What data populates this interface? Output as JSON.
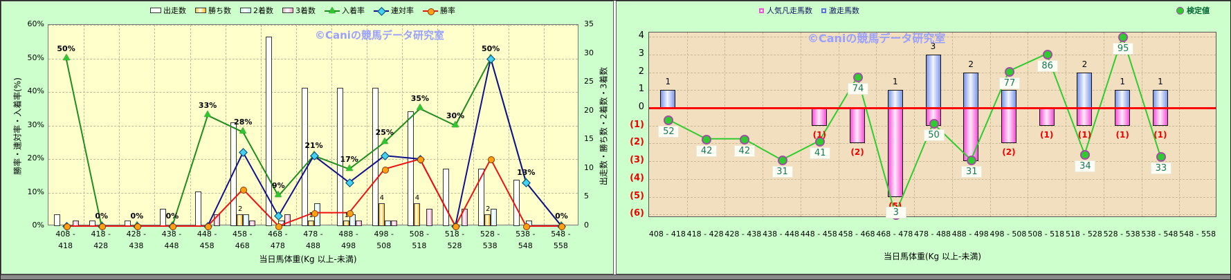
{
  "watermark": "©Caniの競馬データ研究室",
  "chart_data": [
    {
      "type": "bar+line combo",
      "title": "",
      "xlabel": "当日馬体重(Kg 以上-未満)",
      "ylabel_left": "勝率・連対率・入着率(%)",
      "ylabel_right": "出走数・勝ち数・2着数・3着数",
      "ylim_left_pct": [
        0,
        60
      ],
      "ylim_right_count": [
        0,
        35
      ],
      "y_ticks_left": [
        "0%",
        "10%",
        "20%",
        "30%",
        "40%",
        "50%",
        "60%"
      ],
      "y_ticks_right": [
        "0",
        "5",
        "10",
        "15",
        "20",
        "25",
        "30",
        "35"
      ],
      "grid": "dashed both axes",
      "legend_position": "top",
      "categories": [
        "408 - 418",
        "418 - 428",
        "428 - 438",
        "438 - 448",
        "448 - 458",
        "458 - 468",
        "468 - 478",
        "478 - 488",
        "488 - 498",
        "498 - 508",
        "508 - 518",
        "518 - 528",
        "528 - 538",
        "538 - 548",
        "548 - 558"
      ],
      "series": [
        {
          "name": "出走数",
          "type": "bar",
          "axis": "right",
          "color_key": "bar_white",
          "values": [
            2,
            1,
            1,
            3,
            6,
            18,
            33,
            24,
            24,
            24,
            20,
            10,
            10,
            8,
            0
          ]
        },
        {
          "name": "勝ち数",
          "type": "bar",
          "axis": "right",
          "color_key": "bar_yellow",
          "values": [
            0,
            0,
            0,
            0,
            0,
            2,
            0,
            1,
            1,
            4,
            4,
            0,
            2,
            0,
            0
          ],
          "labels": [
            "",
            "",
            "",
            "",
            "",
            "2",
            "",
            "1",
            "1",
            "4",
            "4",
            "",
            "2",
            "",
            ""
          ]
        },
        {
          "name": "2着数",
          "type": "bar",
          "axis": "right",
          "color_key": "bar_ltblue",
          "values": [
            0,
            0,
            0,
            0,
            0,
            2,
            1,
            4,
            2,
            1,
            0,
            0,
            3,
            1,
            0
          ]
        },
        {
          "name": "3着数",
          "type": "bar",
          "axis": "right",
          "color_key": "bar_pink",
          "values": [
            1,
            0,
            0,
            0,
            2,
            1,
            2,
            0,
            1,
            1,
            3,
            3,
            0,
            0,
            0
          ]
        },
        {
          "name": "入着率",
          "type": "line",
          "axis": "left",
          "marker": "triangle",
          "color_key": "line_green",
          "values_pct": [
            50,
            0,
            0,
            0,
            33,
            28,
            9,
            21,
            17,
            25,
            35,
            30,
            50,
            13,
            0
          ],
          "labels": [
            "50%",
            "0%",
            "0%",
            "0%",
            "33%",
            "28%",
            "9%",
            "21%",
            "17%",
            "25%",
            "35%",
            "30%",
            "50%",
            "13%",
            "0%"
          ]
        },
        {
          "name": "連対率",
          "type": "line",
          "axis": "left",
          "marker": "diamond",
          "color_key": "line_navy",
          "values_pct": [
            0,
            0,
            0,
            0,
            0,
            22,
            3,
            21,
            13,
            21,
            20,
            0,
            50,
            13,
            0
          ]
        },
        {
          "name": "勝率",
          "type": "line",
          "axis": "left",
          "marker": "circle",
          "color_key": "line_red",
          "values_pct": [
            0,
            0,
            0,
            0,
            0,
            11,
            0,
            4,
            4,
            17,
            20,
            0,
            20,
            0,
            0
          ]
        }
      ],
      "colors": {
        "outer_bg": "#CCFFCC",
        "plot_bg": "#FFFFCC",
        "grid": "#BBBB99",
        "bar_white": "#FFFFFF",
        "bar_yellow": "#FFB900",
        "bar_ltblue": "#BFE9F2",
        "bar_pink": "#F09CC4",
        "line_green": "#1E8C1E",
        "line_navy": "#101088",
        "line_red": "#EE1111",
        "marker_green": "#2FC62F",
        "marker_cyan": "#44D0EE",
        "marker_orange": "#FFA010",
        "watermark": "#99A0FF"
      }
    },
    {
      "type": "bar+line combo",
      "title": "",
      "xlabel": "当日馬体重(Kg 以上-未満)",
      "ylim": [
        -6,
        4
      ],
      "y_ticks": [
        {
          "label": "4",
          "value": 4,
          "color": "black"
        },
        {
          "label": "3",
          "value": 3,
          "color": "black"
        },
        {
          "label": "2",
          "value": 2,
          "color": "black"
        },
        {
          "label": "1",
          "value": 1,
          "color": "black"
        },
        {
          "label": "0",
          "value": 0,
          "color": "black"
        },
        {
          "label": "(1)",
          "value": -1,
          "color": "red"
        },
        {
          "label": "(2)",
          "value": -2,
          "color": "red"
        },
        {
          "label": "(3)",
          "value": -3,
          "color": "red"
        },
        {
          "label": "(4)",
          "value": -4,
          "color": "red"
        },
        {
          "label": "(5)",
          "value": -5,
          "color": "red"
        },
        {
          "label": "(6)",
          "value": -6,
          "color": "red"
        }
      ],
      "zero_line": "red",
      "grid": "dashed both axes",
      "categories": [
        "408 - 418",
        "418 - 428",
        "428 - 438",
        "438 - 448",
        "448 - 458",
        "458 - 468",
        "468 - 478",
        "478 - 488",
        "488 - 498",
        "498 - 508",
        "508 - 518",
        "518 - 528",
        "528 - 538",
        "538 - 548",
        "548 - 558"
      ],
      "series": [
        {
          "name": "激走馬数",
          "type": "bar",
          "direction": "up",
          "color_key": "bar_blue",
          "values": [
            1,
            0,
            0,
            0,
            0,
            0,
            1,
            3,
            2,
            1,
            0,
            2,
            1,
            1,
            0
          ],
          "labels": [
            "1",
            "",
            "",
            "",
            "",
            "",
            "1",
            "3",
            "2",
            "1",
            "",
            "2",
            "1",
            "1",
            ""
          ]
        },
        {
          "name": "人気凡走馬数",
          "type": "bar",
          "direction": "down",
          "color_key": "bar_magenta",
          "values": [
            0,
            0,
            0,
            0,
            -1,
            -2,
            -5,
            -1,
            -3,
            -2,
            -1,
            -1,
            -1,
            -1,
            0
          ],
          "labels": [
            "",
            "",
            "",
            "",
            "(1)",
            "(2)",
            "(5)",
            "(1)",
            "(3)",
            "(2)",
            "(1)",
            "(1)",
            "(1)",
            "(1)",
            ""
          ]
        },
        {
          "name": "検定値",
          "type": "line",
          "marker": "circle",
          "color_key": "line_green",
          "values": [
            52,
            42,
            42,
            31,
            41,
            74,
            3,
            50,
            31,
            77,
            86,
            34,
            95,
            33,
            null
          ],
          "plot_y": [
            -0.65,
            -1.74,
            -1.74,
            -2.93,
            -1.85,
            1.74,
            -5.98,
            -0.87,
            -2.93,
            2.07,
            3.04,
            -2.61,
            4.02,
            -2.72,
            null
          ]
        }
      ],
      "colors": {
        "outer_bg": "#CCFFCC",
        "plot_bg": "#F2DFC0",
        "grid": "#BBAA88",
        "bar_blue": "#7B96E8",
        "bar_magenta": "#F650D8",
        "line_green": "#2ECC2E",
        "dot_fill": "#2ECC2E",
        "dot_ring": "#A050A0",
        "zero_line": "#FF0000",
        "value_label": "#117755",
        "neg_label": "#EE0000",
        "watermark": "#99A0FF"
      }
    }
  ],
  "left_panel": {
    "legend": [
      {
        "label": "出走数",
        "kind": "bar",
        "color_key": "bar_white"
      },
      {
        "label": "勝ち数",
        "kind": "bar",
        "color_key": "bar_yellow"
      },
      {
        "label": "2着数",
        "kind": "bar",
        "color_key": "bar_ltblue"
      },
      {
        "label": "3着数",
        "kind": "bar",
        "color_key": "bar_pink"
      },
      {
        "label": "入着率",
        "kind": "line",
        "marker": "triangle",
        "color_key": "line_green"
      },
      {
        "label": "連対率",
        "kind": "line",
        "marker": "diamond",
        "color_key": "line_navy"
      },
      {
        "label": "勝率",
        "kind": "line",
        "marker": "circle",
        "color_key": "line_red"
      }
    ]
  },
  "right_panel": {
    "legend": [
      {
        "label": "人気凡走馬数",
        "kind": "square",
        "border": "#F650D8"
      },
      {
        "label": "激走馬数",
        "kind": "square",
        "border": "#5577DD"
      }
    ],
    "legend_line": {
      "label": "検定値",
      "kind": "circle",
      "color": "#2ECC2E"
    }
  }
}
